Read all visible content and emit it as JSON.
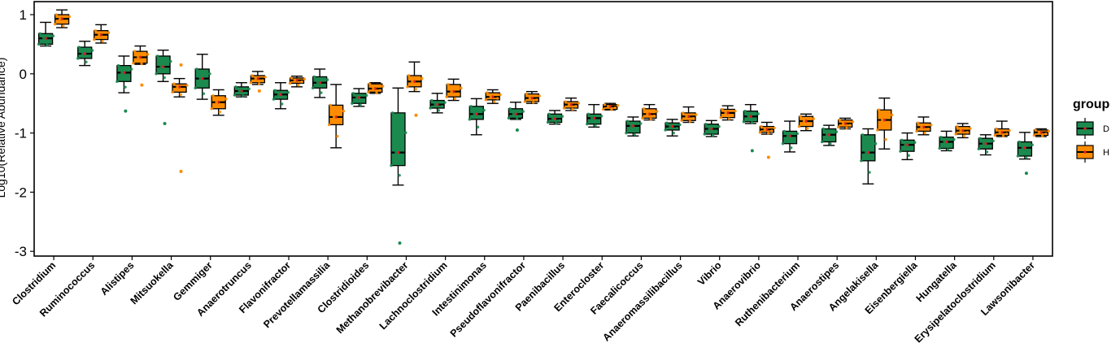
{
  "chart_data": {
    "type": "boxplot",
    "ylabel": "Log10(Relative Abundance)",
    "ylim": [
      -3.08,
      1.22
    ],
    "yticks": [
      1,
      0,
      -1,
      -2,
      -3
    ],
    "grid": false,
    "legend_position": "right",
    "legend": {
      "title": "group",
      "entries": [
        {
          "label": "D",
          "color": "#1b8a4f"
        },
        {
          "label": "H",
          "color": "#ff8c00"
        }
      ]
    },
    "categories": [
      "Clostridium",
      "Ruminococcus",
      "Alistipes",
      "Mitsuokella",
      "Gemmiger",
      "Anaerotruncus",
      "Flavonifractor",
      "Prevotellamassilia",
      "Clostridioides",
      "Methanobrevibacter",
      "Lachnoclostridium",
      "Intestinimonas",
      "Pseudoflavonifractor",
      "Paenibacillus",
      "Enterocloster",
      "Faecalicoccus",
      "Anaeromassilibacillus",
      "Vibrio",
      "Anaerovibrio",
      "Ruthenibacterium",
      "Anaerostipes",
      "Angelakisella",
      "Eisenbergiella",
      "Hungatella",
      "Erysipelatoclostridium",
      "Lawsonibacter"
    ],
    "series": [
      {
        "name": "D",
        "color": "#1b8a4f",
        "boxes": [
          {
            "min": 0.47,
            "q1": 0.5,
            "median": 0.6,
            "q3": 0.68,
            "max": 0.87,
            "outliers": []
          },
          {
            "min": 0.14,
            "q1": 0.26,
            "median": 0.34,
            "q3": 0.45,
            "max": 0.55,
            "outliers": []
          },
          {
            "min": -0.32,
            "q1": -0.13,
            "median": 0.02,
            "q3": 0.14,
            "max": 0.3,
            "outliers": [
              -0.63
            ]
          },
          {
            "min": -0.13,
            "q1": 0.0,
            "median": 0.12,
            "q3": 0.3,
            "max": 0.4,
            "outliers": [
              -0.84
            ]
          },
          {
            "min": -0.43,
            "q1": -0.24,
            "median": -0.08,
            "q3": 0.08,
            "max": 0.33,
            "outliers": []
          },
          {
            "min": -0.39,
            "q1": -0.36,
            "median": -0.29,
            "q3": -0.22,
            "max": -0.15,
            "outliers": []
          },
          {
            "min": -0.59,
            "q1": -0.43,
            "median": -0.35,
            "q3": -0.28,
            "max": -0.15,
            "outliers": []
          },
          {
            "min": -0.4,
            "q1": -0.24,
            "median": -0.15,
            "q3": -0.05,
            "max": 0.08,
            "outliers": []
          },
          {
            "min": -0.55,
            "q1": -0.5,
            "median": -0.4,
            "q3": -0.33,
            "max": -0.25,
            "outliers": []
          },
          {
            "min": -1.88,
            "q1": -1.55,
            "median": -1.33,
            "q3": -0.66,
            "max": -0.24,
            "outliers": [
              -2.86
            ]
          },
          {
            "min": -0.66,
            "q1": -0.58,
            "median": -0.52,
            "q3": -0.45,
            "max": -0.33,
            "outliers": []
          },
          {
            "min": -1.03,
            "q1": -0.77,
            "median": -0.68,
            "q3": -0.55,
            "max": -0.42,
            "outliers": []
          },
          {
            "min": -0.77,
            "q1": -0.75,
            "median": -0.68,
            "q3": -0.59,
            "max": -0.48,
            "outliers": [
              -0.95
            ]
          },
          {
            "min": -0.85,
            "q1": -0.82,
            "median": -0.76,
            "q3": -0.68,
            "max": -0.62,
            "outliers": []
          },
          {
            "min": -0.9,
            "q1": -0.85,
            "median": -0.75,
            "q3": -0.68,
            "max": -0.52,
            "outliers": []
          },
          {
            "min": -1.05,
            "q1": -1.0,
            "median": -0.88,
            "q3": -0.8,
            "max": -0.73,
            "outliers": []
          },
          {
            "min": -1.05,
            "q1": -0.95,
            "median": -0.89,
            "q3": -0.83,
            "max": -0.77,
            "outliers": []
          },
          {
            "min": -1.06,
            "q1": -1.02,
            "median": -0.93,
            "q3": -0.85,
            "max": -0.79,
            "outliers": []
          },
          {
            "min": -0.84,
            "q1": -0.81,
            "median": -0.72,
            "q3": -0.63,
            "max": -0.52,
            "outliers": [
              -1.3
            ]
          },
          {
            "min": -1.32,
            "q1": -1.18,
            "median": -1.05,
            "q3": -0.97,
            "max": -0.8,
            "outliers": []
          },
          {
            "min": -1.21,
            "q1": -1.15,
            "median": -1.03,
            "q3": -0.93,
            "max": -0.87,
            "outliers": []
          },
          {
            "min": -1.86,
            "q1": -1.47,
            "median": -1.33,
            "q3": -1.03,
            "max": -0.93,
            "outliers": []
          },
          {
            "min": -1.45,
            "q1": -1.31,
            "median": -1.2,
            "q3": -1.12,
            "max": -1.0,
            "outliers": []
          },
          {
            "min": -1.3,
            "q1": -1.26,
            "median": -1.15,
            "q3": -1.07,
            "max": -0.97,
            "outliers": []
          },
          {
            "min": -1.37,
            "q1": -1.27,
            "median": -1.18,
            "q3": -1.09,
            "max": -1.03,
            "outliers": []
          },
          {
            "min": -1.44,
            "q1": -1.39,
            "median": -1.25,
            "q3": -1.15,
            "max": -0.99,
            "outliers": [
              -1.68
            ]
          }
        ]
      },
      {
        "name": "H",
        "color": "#ff8c00",
        "boxes": [
          {
            "min": 0.78,
            "q1": 0.84,
            "median": 0.93,
            "q3": 1.0,
            "max": 1.08,
            "outliers": []
          },
          {
            "min": 0.52,
            "q1": 0.58,
            "median": 0.66,
            "q3": 0.73,
            "max": 0.83,
            "outliers": []
          },
          {
            "min": 0.16,
            "q1": 0.18,
            "median": 0.28,
            "q3": 0.38,
            "max": 0.47,
            "outliers": [
              -0.19
            ]
          },
          {
            "min": -0.39,
            "q1": -0.31,
            "median": -0.22,
            "q3": -0.17,
            "max": -0.08,
            "outliers": [
              0.15,
              -1.65
            ]
          },
          {
            "min": -0.7,
            "q1": -0.59,
            "median": -0.48,
            "q3": -0.37,
            "max": -0.27,
            "outliers": []
          },
          {
            "min": -0.18,
            "q1": -0.15,
            "median": -0.08,
            "q3": -0.03,
            "max": 0.04,
            "outliers": [
              -0.29
            ]
          },
          {
            "min": -0.22,
            "q1": -0.16,
            "median": -0.11,
            "q3": -0.07,
            "max": -0.04,
            "outliers": []
          },
          {
            "min": -1.25,
            "q1": -0.86,
            "median": -0.73,
            "q3": -0.53,
            "max": -0.18,
            "outliers": []
          },
          {
            "min": -0.33,
            "q1": -0.31,
            "median": -0.25,
            "q3": -0.17,
            "max": -0.15,
            "outliers": []
          },
          {
            "min": -0.3,
            "q1": -0.22,
            "median": -0.13,
            "q3": -0.03,
            "max": 0.2,
            "outliers": [
              -0.7
            ]
          },
          {
            "min": -0.45,
            "q1": -0.39,
            "median": -0.3,
            "q3": -0.18,
            "max": -0.09,
            "outliers": []
          },
          {
            "min": -0.5,
            "q1": -0.44,
            "median": -0.39,
            "q3": -0.32,
            "max": -0.27,
            "outliers": []
          },
          {
            "min": -0.5,
            "q1": -0.47,
            "median": -0.41,
            "q3": -0.34,
            "max": -0.3,
            "outliers": []
          },
          {
            "min": -0.62,
            "q1": -0.58,
            "median": -0.52,
            "q3": -0.47,
            "max": -0.41,
            "outliers": []
          },
          {
            "min": -0.61,
            "q1": -0.6,
            "median": -0.55,
            "q3": -0.52,
            "max": -0.5,
            "outliers": []
          },
          {
            "min": -0.78,
            "q1": -0.75,
            "median": -0.68,
            "q3": -0.59,
            "max": -0.52,
            "outliers": []
          },
          {
            "min": -0.82,
            "q1": -0.79,
            "median": -0.72,
            "q3": -0.66,
            "max": -0.56,
            "outliers": []
          },
          {
            "min": -0.78,
            "q1": -0.74,
            "median": -0.66,
            "q3": -0.6,
            "max": -0.54,
            "outliers": []
          },
          {
            "min": -1.02,
            "q1": -0.99,
            "median": -0.94,
            "q3": -0.89,
            "max": -0.82,
            "outliers": [
              -1.41
            ]
          },
          {
            "min": -0.96,
            "q1": -0.89,
            "median": -0.8,
            "q3": -0.72,
            "max": -0.68,
            "outliers": []
          },
          {
            "min": -0.93,
            "q1": -0.9,
            "median": -0.84,
            "q3": -0.78,
            "max": -0.75,
            "outliers": []
          },
          {
            "min": -1.27,
            "q1": -0.95,
            "median": -0.78,
            "q3": -0.61,
            "max": -0.41,
            "outliers": []
          },
          {
            "min": -1.03,
            "q1": -0.97,
            "median": -0.9,
            "q3": -0.83,
            "max": -0.73,
            "outliers": []
          },
          {
            "min": -1.08,
            "q1": -1.02,
            "median": -0.96,
            "q3": -0.89,
            "max": -0.84,
            "outliers": []
          },
          {
            "min": -1.06,
            "q1": -1.04,
            "median": -0.99,
            "q3": -0.93,
            "max": -0.8,
            "outliers": []
          },
          {
            "min": -1.06,
            "q1": -1.04,
            "median": -0.99,
            "q3": -0.95,
            "max": -0.93,
            "outliers": []
          }
        ]
      }
    ]
  }
}
